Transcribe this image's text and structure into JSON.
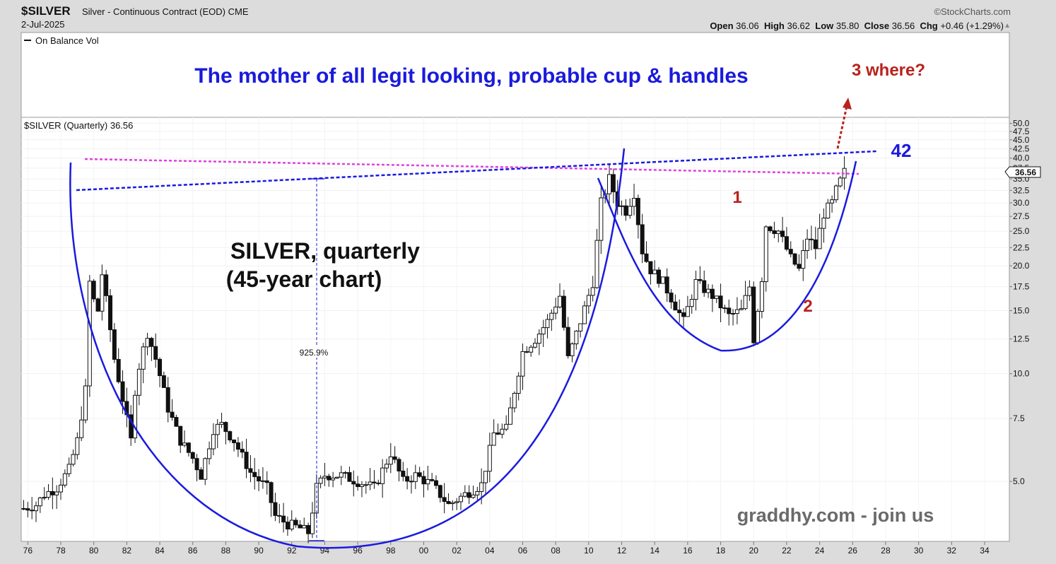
{
  "header": {
    "ticker": "$SILVER",
    "description": "Silver - Continuous Contract (EOD) CME",
    "date": "2-Jul-2025",
    "brand": "©StockCharts.com",
    "open_label": "Open",
    "open": "36.06",
    "high_label": "High",
    "high": "36.62",
    "low_label": "Low",
    "low": "35.80",
    "close_label": "Close",
    "close": "36.56",
    "chg_label": "Chg",
    "chg": "+0.46 (+1.29%)"
  },
  "upper_panel": {
    "legend": "On Balance Vol",
    "headline": "The mother of all legit looking, probable cup & handles",
    "note": "3 where?"
  },
  "main_panel": {
    "legend": "$SILVER (Quarterly) 36.56",
    "last_value": "36.56",
    "chart_title": "SILVER, quarterly",
    "chart_subtitle": "(45-year chart)",
    "measure_label": "925.9%",
    "target_label": "42",
    "label_1": "1",
    "label_2": "2",
    "watermark": "graddhy.com - join us"
  },
  "colors": {
    "background": "#ffffff",
    "frame": "#dcdcdc",
    "headline": "#1a1adb",
    "red_note": "#b8221c",
    "curve_blue": "#1a1ae0",
    "pink_line": "#e040e0",
    "candle": "#111111",
    "watermark": "#6a6a6a"
  },
  "chart_data": {
    "type": "candlestick",
    "period": "quarterly",
    "y_scale": "log",
    "ylim": [
      3.4,
      52
    ],
    "y_ticks": [
      "5.0",
      "7.5",
      "10.0",
      "12.5",
      "15.0",
      "17.5",
      "20.0",
      "22.5",
      "25.0",
      "27.5",
      "30.0",
      "32.5",
      "35.0",
      "37.5",
      "40.0",
      "42.5",
      "45.0",
      "47.5",
      "50.0"
    ],
    "x_ticks": [
      "76",
      "78",
      "80",
      "82",
      "84",
      "86",
      "88",
      "90",
      "92",
      "94",
      "96",
      "98",
      "00",
      "02",
      "04",
      "06",
      "08",
      "10",
      "12",
      "14",
      "16",
      "18",
      "20",
      "22",
      "24",
      "26",
      "28",
      "30",
      "32",
      "34"
    ],
    "x_range": [
      1975.6,
      2035.5
    ],
    "closes": [
      [
        1975.75,
        4.2
      ],
      [
        1976.5,
        4.3
      ],
      [
        1977.0,
        4.6
      ],
      [
        1977.75,
        4.8
      ],
      [
        1978.5,
        5.4
      ],
      [
        1979.0,
        6.5
      ],
      [
        1979.5,
        9.0
      ],
      [
        1979.75,
        18.0
      ],
      [
        1980.0,
        16.0
      ],
      [
        1980.25,
        15.0
      ],
      [
        1980.5,
        19.0
      ],
      [
        1980.75,
        16.0
      ],
      [
        1981.25,
        11.0
      ],
      [
        1981.75,
        8.5
      ],
      [
        1982.25,
        6.5
      ],
      [
        1982.5,
        9.0
      ],
      [
        1982.75,
        10.5
      ],
      [
        1983.25,
        13.0
      ],
      [
        1983.75,
        11.0
      ],
      [
        1984.5,
        8.0
      ],
      [
        1985.25,
        6.5
      ],
      [
        1986.0,
        5.8
      ],
      [
        1986.5,
        5.2
      ],
      [
        1987.25,
        7.0
      ],
      [
        1987.75,
        7.2
      ],
      [
        1988.5,
        6.5
      ],
      [
        1989.5,
        5.3
      ],
      [
        1990.5,
        4.8
      ],
      [
        1991.0,
        4.0
      ],
      [
        1991.75,
        3.8
      ],
      [
        1992.5,
        3.7
      ],
      [
        1993.0,
        3.6
      ],
      [
        1993.5,
        4.8
      ],
      [
        1994.0,
        5.2
      ],
      [
        1995.0,
        5.2
      ],
      [
        1996.0,
        5.0
      ],
      [
        1997.0,
        4.8
      ],
      [
        1998.0,
        6.0
      ],
      [
        1998.75,
        5.0
      ],
      [
        1999.5,
        5.2
      ],
      [
        2000.5,
        4.9
      ],
      [
        2001.5,
        4.3
      ],
      [
        2002.5,
        4.6
      ],
      [
        2003.5,
        4.9
      ],
      [
        2004.25,
        6.8
      ],
      [
        2005.0,
        7.0
      ],
      [
        2006.0,
        11.5
      ],
      [
        2006.75,
        12.5
      ],
      [
        2007.5,
        14.0
      ],
      [
        2008.25,
        16.5
      ],
      [
        2008.75,
        11.0
      ],
      [
        2009.5,
        14.0
      ],
      [
        2010.25,
        18.0
      ],
      [
        2010.75,
        30.0
      ],
      [
        2011.25,
        35.0
      ],
      [
        2011.75,
        30.0
      ],
      [
        2012.25,
        28.5
      ],
      [
        2012.75,
        32.0
      ],
      [
        2013.25,
        22.0
      ],
      [
        2013.75,
        19.5
      ],
      [
        2014.5,
        18.0
      ],
      [
        2015.25,
        15.5
      ],
      [
        2015.75,
        14.0
      ],
      [
        2016.5,
        18.0
      ],
      [
        2017.5,
        16.5
      ],
      [
        2018.5,
        14.5
      ],
      [
        2019.25,
        15.0
      ],
      [
        2019.75,
        17.5
      ],
      [
        2020.0,
        12.5
      ],
      [
        2020.5,
        18.5
      ],
      [
        2020.75,
        26.0
      ],
      [
        2021.5,
        25.0
      ],
      [
        2022.25,
        21.0
      ],
      [
        2022.75,
        19.5
      ],
      [
        2023.25,
        24.0
      ],
      [
        2023.75,
        22.5
      ],
      [
        2024.25,
        28.0
      ],
      [
        2024.75,
        30.0
      ],
      [
        2025.0,
        32.5
      ],
      [
        2025.5,
        36.56
      ]
    ]
  }
}
